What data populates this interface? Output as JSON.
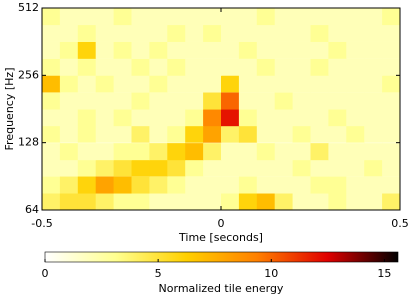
{
  "chart_data": {
    "type": "heatmap",
    "xlabel": "Time [seconds]",
    "ylabel": "Frequency [Hz]",
    "colorbar_label": "Normalized tile energy",
    "x": [
      -0.475,
      -0.425,
      -0.375,
      -0.325,
      -0.275,
      -0.225,
      -0.175,
      -0.125,
      -0.075,
      -0.025,
      0.025,
      0.075,
      0.125,
      0.175,
      0.225,
      0.275,
      0.325,
      0.375,
      0.425,
      0.475
    ],
    "y": [
      70,
      83,
      99,
      117,
      140,
      166,
      197,
      235,
      279,
      332,
      395,
      470
    ],
    "z": [
      [
        4,
        5,
        5,
        4,
        3,
        3,
        2,
        2,
        2,
        2,
        3,
        6,
        7,
        4,
        2,
        2,
        3,
        2,
        2,
        4
      ],
      [
        3,
        4,
        6,
        8,
        7,
        5,
        4,
        3,
        2,
        2,
        2,
        3,
        2,
        2,
        2,
        3,
        3,
        2,
        2,
        2
      ],
      [
        2,
        2,
        3,
        4,
        5,
        6,
        6,
        5,
        3,
        2,
        2,
        2,
        2,
        2,
        3,
        2,
        2,
        2,
        3,
        2
      ],
      [
        2,
        3,
        2,
        2,
        3,
        3,
        4,
        6,
        7,
        4,
        2,
        2,
        3,
        2,
        2,
        4,
        2,
        2,
        2,
        2
      ],
      [
        3,
        2,
        3,
        2,
        2,
        4,
        2,
        3,
        6,
        8,
        4,
        5,
        2,
        2,
        3,
        2,
        2,
        3,
        2,
        2
      ],
      [
        2,
        2,
        3,
        2,
        3,
        2,
        2,
        2,
        3,
        9,
        12,
        3,
        2,
        2,
        2,
        2,
        3,
        2,
        2,
        2
      ],
      [
        3,
        2,
        2,
        2,
        2,
        3,
        2,
        2,
        2,
        5,
        10,
        2,
        2,
        3,
        2,
        2,
        2,
        2,
        2,
        2
      ],
      [
        7,
        3,
        2,
        3,
        2,
        2,
        3,
        2,
        2,
        2,
        6,
        2,
        2,
        2,
        2,
        2,
        2,
        2,
        2,
        3
      ],
      [
        3,
        2,
        3,
        2,
        2,
        3,
        2,
        3,
        2,
        2,
        2,
        2,
        3,
        2,
        2,
        3,
        2,
        2,
        2,
        2
      ],
      [
        2,
        3,
        6,
        2,
        3,
        2,
        3,
        2,
        2,
        2,
        2,
        3,
        2,
        2,
        2,
        2,
        3,
        2,
        2,
        2
      ],
      [
        2,
        2,
        3,
        2,
        2,
        2,
        2,
        3,
        2,
        3,
        2,
        2,
        2,
        2,
        2,
        3,
        2,
        2,
        2,
        2
      ],
      [
        3,
        2,
        2,
        2,
        3,
        2,
        2,
        2,
        2,
        2,
        2,
        2,
        3,
        2,
        2,
        2,
        2,
        2,
        2,
        3
      ]
    ],
    "xlim": [
      -0.5,
      0.5
    ],
    "xticks": [
      -0.5,
      0,
      0.5
    ],
    "ylim": [
      64,
      512
    ],
    "yticks": [
      64,
      128,
      256,
      512
    ],
    "yscale": "log",
    "zlim": [
      0,
      15.6
    ],
    "zticks": [
      0,
      5,
      10,
      15
    ],
    "colormap": [
      "#ffffff",
      "#ffff90",
      "#ffd000",
      "#ff8000",
      "#e00000",
      "#000000"
    ]
  }
}
